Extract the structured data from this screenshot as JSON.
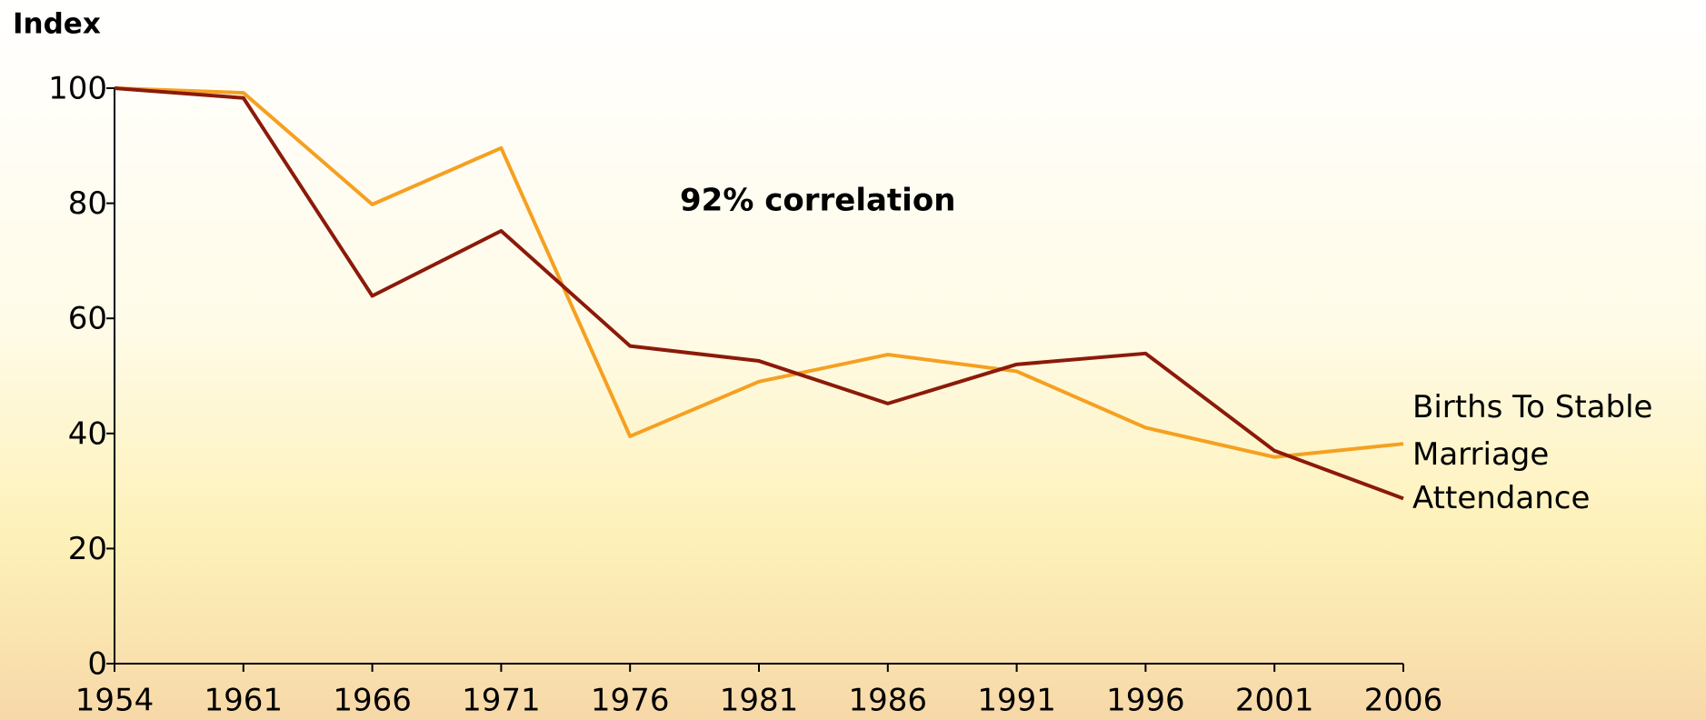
{
  "chart_data": {
    "type": "line",
    "y_label": "Index",
    "annotation": "92% correlation",
    "categories": [
      "1954",
      "1961",
      "1966",
      "1971",
      "1976",
      "1981",
      "1986",
      "1991",
      "1996",
      "2001",
      "2006"
    ],
    "series": [
      {
        "name": "Births To Stable Marriage",
        "color": "#f5a020",
        "values": [
          100,
          99.2,
          79.8,
          89.6,
          39.5,
          49,
          53.7,
          50.8,
          41,
          35.9,
          38.2
        ]
      },
      {
        "name": "Attendance",
        "color": "#8b1a0a",
        "values": [
          100,
          98.3,
          63.9,
          75.2,
          55.2,
          52.6,
          45.2,
          52,
          53.9,
          37,
          28.7
        ]
      }
    ],
    "ylim": [
      0,
      100
    ],
    "yticks": [
      0,
      20,
      40,
      60,
      80,
      100
    ],
    "grid": false
  }
}
